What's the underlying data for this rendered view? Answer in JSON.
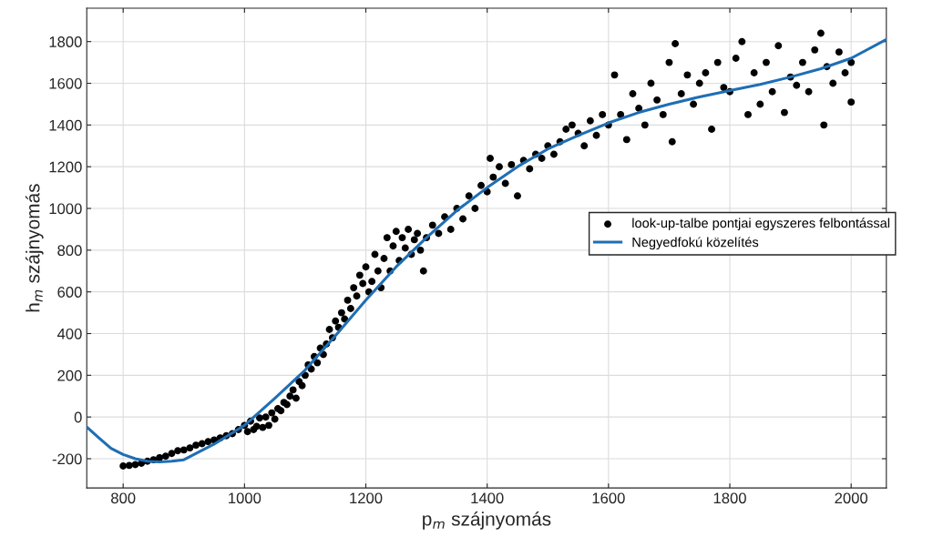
{
  "chart_data": {
    "type": "scatter",
    "xlabel": "p$_{m}$ szájnyomás",
    "ylabel": "h$_{m}$ szájnyomás",
    "xlim": [
      740,
      2058
    ],
    "ylim": [
      -340,
      1960
    ],
    "xticks": [
      800,
      1000,
      1200,
      1400,
      1600,
      1800,
      2000
    ],
    "yticks": [
      -200,
      0,
      200,
      400,
      600,
      800,
      1000,
      1200,
      1400,
      1600,
      1800
    ],
    "grid": true,
    "legend": "right",
    "series": [
      {
        "name": "look-up-talbe pontjai egyszeres felbontással",
        "marker": "circle",
        "color": "#000000",
        "x": [
          800,
          810,
          820,
          830,
          840,
          850,
          860,
          870,
          880,
          890,
          900,
          910,
          920,
          930,
          940,
          950,
          960,
          970,
          980,
          990,
          1000,
          1005,
          1010,
          1015,
          1020,
          1025,
          1030,
          1035,
          1040,
          1045,
          1050,
          1055,
          1060,
          1065,
          1070,
          1075,
          1080,
          1085,
          1090,
          1095,
          1100,
          1105,
          1110,
          1115,
          1120,
          1125,
          1130,
          1135,
          1140,
          1145,
          1150,
          1155,
          1160,
          1165,
          1170,
          1175,
          1180,
          1185,
          1190,
          1195,
          1200,
          1205,
          1210,
          1215,
          1220,
          1225,
          1230,
          1235,
          1240,
          1245,
          1250,
          1255,
          1260,
          1265,
          1270,
          1275,
          1280,
          1285,
          1290,
          1295,
          1300,
          1310,
          1320,
          1330,
          1340,
          1350,
          1360,
          1370,
          1380,
          1390,
          1400,
          1405,
          1410,
          1420,
          1430,
          1440,
          1450,
          1460,
          1470,
          1480,
          1490,
          1500,
          1510,
          1520,
          1530,
          1540,
          1550,
          1560,
          1570,
          1580,
          1590,
          1600,
          1610,
          1620,
          1630,
          1640,
          1650,
          1660,
          1670,
          1680,
          1690,
          1700,
          1705,
          1710,
          1720,
          1730,
          1740,
          1750,
          1760,
          1770,
          1780,
          1790,
          1800,
          1810,
          1820,
          1830,
          1840,
          1850,
          1860,
          1870,
          1880,
          1890,
          1900,
          1910,
          1920,
          1930,
          1940,
          1950,
          1955,
          1960,
          1970,
          1980,
          1990,
          2000,
          2000
        ],
        "values": [
          -235,
          -232,
          -228,
          -222,
          -212,
          -205,
          -195,
          -188,
          -175,
          -162,
          -158,
          -148,
          -135,
          -128,
          -118,
          -110,
          -100,
          -90,
          -80,
          -60,
          -40,
          -70,
          -20,
          -60,
          -45,
          -5,
          -50,
          0,
          -40,
          20,
          -10,
          40,
          30,
          70,
          60,
          100,
          130,
          90,
          170,
          150,
          200,
          250,
          230,
          290,
          260,
          330,
          300,
          350,
          420,
          380,
          460,
          430,
          500,
          470,
          560,
          520,
          620,
          580,
          680,
          640,
          720,
          600,
          650,
          780,
          700,
          620,
          760,
          860,
          700,
          820,
          890,
          750,
          860,
          810,
          900,
          780,
          850,
          880,
          800,
          700,
          860,
          920,
          880,
          960,
          900,
          1000,
          950,
          1060,
          1000,
          1110,
          1080,
          1240,
          1150,
          1200,
          1120,
          1210,
          1060,
          1230,
          1190,
          1260,
          1240,
          1300,
          1260,
          1320,
          1380,
          1400,
          1360,
          1300,
          1420,
          1350,
          1450,
          1400,
          1640,
          1450,
          1330,
          1550,
          1480,
          1400,
          1600,
          1520,
          1450,
          1700,
          1320,
          1790,
          1550,
          1640,
          1500,
          1600,
          1650,
          1380,
          1700,
          1580,
          1560,
          1720,
          1800,
          1450,
          1650,
          1500,
          1700,
          1560,
          1780,
          1460,
          1630,
          1590,
          1700,
          1560,
          1760,
          1840,
          1400,
          1680,
          1600,
          1750,
          1650,
          1510,
          1700
        ]
      },
      {
        "name": "Negyedfokú közelítés",
        "type": "line",
        "line_style": "solid",
        "color": "#1f6eb4",
        "x": [
          740,
          760,
          780,
          800,
          820,
          840,
          860,
          880,
          900,
          950,
          1000,
          1050,
          1100,
          1150,
          1200,
          1250,
          1300,
          1350,
          1400,
          1450,
          1500,
          1550,
          1600,
          1650,
          1700,
          1750,
          1800,
          1850,
          1900,
          1950,
          2000,
          2058
        ],
        "values": [
          -48,
          -100,
          -150,
          -180,
          -200,
          -212,
          -215,
          -212,
          -205,
          -130,
          -40,
          90,
          225,
          390,
          560,
          720,
          860,
          990,
          1100,
          1200,
          1285,
          1350,
          1410,
          1460,
          1500,
          1535,
          1565,
          1595,
          1630,
          1670,
          1720,
          1810
        ]
      }
    ]
  }
}
